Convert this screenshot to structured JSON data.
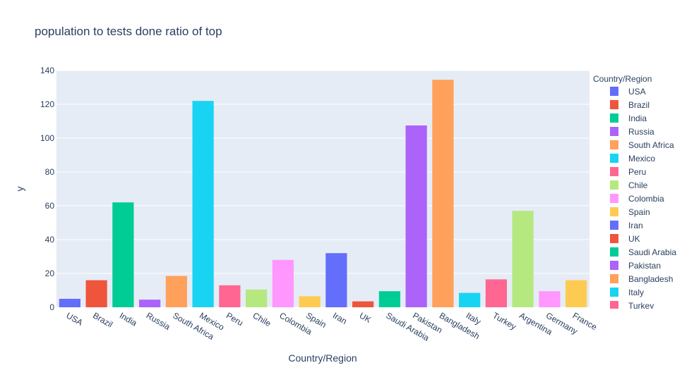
{
  "chart_data": {
    "type": "bar",
    "title": "population to tests done ratio of top",
    "xlabel": "Country/Region",
    "ylabel": "y",
    "ylim": [
      0,
      140
    ],
    "yticks": [
      0,
      20,
      40,
      60,
      80,
      100,
      120,
      140
    ],
    "grid": true,
    "legend_title": "Country/Region",
    "legend_position": "right",
    "categories": [
      "USA",
      "Brazil",
      "India",
      "Russia",
      "South Africa",
      "Mexico",
      "Peru",
      "Chile",
      "Colombia",
      "Spain",
      "Iran",
      "UK",
      "Saudi Arabia",
      "Pakistan",
      "Bangladesh",
      "Italy",
      "Turkey",
      "Argentina",
      "Germany",
      "France"
    ],
    "values": [
      5,
      16,
      62,
      4.5,
      18.5,
      122,
      13,
      10.5,
      28,
      6.5,
      32,
      3.5,
      9.5,
      107.5,
      134.5,
      8.5,
      16.5,
      57,
      9.5,
      16
    ],
    "colors": [
      "#636efa",
      "#ef553b",
      "#00cc96",
      "#ab63fa",
      "#ffa15a",
      "#19d3f3",
      "#ff6692",
      "#b6e880",
      "#ff97ff",
      "#fecb52",
      "#636efa",
      "#ef553b",
      "#00cc96",
      "#ab63fa",
      "#ffa15a",
      "#19d3f3",
      "#ff6692",
      "#b6e880",
      "#ff97ff",
      "#fecb52"
    ],
    "legend_visible": [
      "USA",
      "Brazil",
      "India",
      "Russia",
      "South Africa",
      "Mexico",
      "Peru",
      "Chile",
      "Colombia",
      "Spain",
      "Iran",
      "UK",
      "Saudi Arabia",
      "Pakistan",
      "Bangladesh",
      "Italy",
      "Turkey"
    ]
  }
}
